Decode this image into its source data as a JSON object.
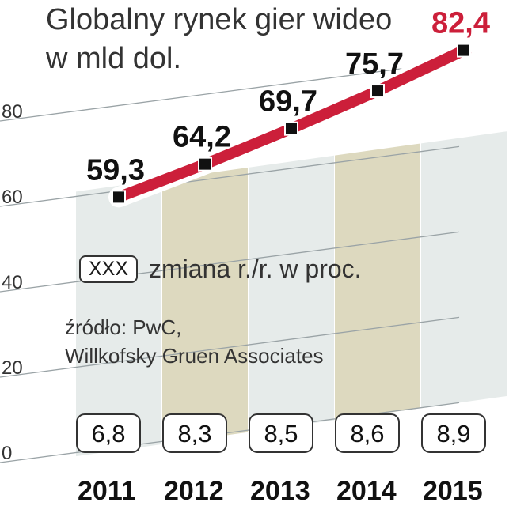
{
  "title_line1": "Globalny rynek gier wideo",
  "title_line2": "w mld dol.",
  "legend": {
    "box_label": "XXX",
    "text": "zmiana r./r. w proc."
  },
  "source_line1": "źródło: PwC,",
  "source_line2": "Willkofsky Gruen Associates",
  "colors": {
    "line": "#cc1f3a",
    "highlight_label": "#cc1f3a",
    "stripe_light": "#e6ebea",
    "stripe_dark": "#ddd9bf",
    "grid": "#9aa3a6",
    "marker": "#111111"
  },
  "chart_data": {
    "type": "line",
    "categories": [
      "2011",
      "2012",
      "2013",
      "2014",
      "2015"
    ],
    "series": [
      {
        "values": [
          59.3,
          64.2,
          69.7,
          75.7,
          82.4
        ]
      }
    ],
    "value_labels": [
      "59,3",
      "64,2",
      "69,7",
      "75,7",
      "82,4"
    ],
    "yoy_change": [
      "6,8",
      "8,3",
      "8,5",
      "8,6",
      "8,9"
    ],
    "yticks": [
      "0",
      "20",
      "40",
      "60",
      "80"
    ],
    "ylim": [
      0,
      90
    ]
  }
}
